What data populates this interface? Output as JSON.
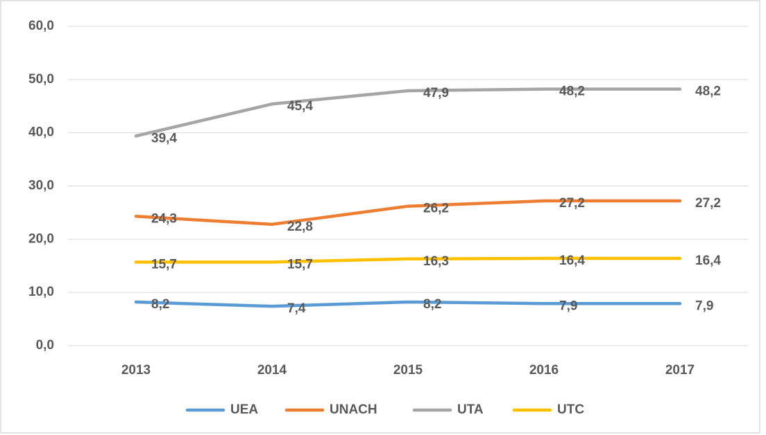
{
  "chart_data": {
    "type": "line",
    "categories": [
      "2013",
      "2014",
      "2015",
      "2016",
      "2017"
    ],
    "series": [
      {
        "name": "UEA",
        "color": "#5b9bd5",
        "values": [
          8.2,
          7.4,
          8.2,
          7.9,
          7.9
        ],
        "value_labels": [
          "8,2",
          "7,4",
          "8,2",
          "7,9",
          "7,9"
        ]
      },
      {
        "name": "UNACH",
        "color": "#ed7d31",
        "values": [
          24.3,
          22.8,
          26.2,
          27.2,
          27.2
        ],
        "value_labels": [
          "24,3",
          "22,8",
          "26,2",
          "27,2",
          "27,2"
        ]
      },
      {
        "name": "UTA",
        "color": "#a5a5a5",
        "values": [
          39.4,
          45.4,
          47.9,
          48.2,
          48.2
        ],
        "value_labels": [
          "39,4",
          "45,4",
          "47,9",
          "48,2",
          "48,2"
        ]
      },
      {
        "name": "UTC",
        "color": "#ffc000",
        "values": [
          15.7,
          15.7,
          16.3,
          16.4,
          16.4
        ],
        "value_labels": [
          "15,7",
          "15,7",
          "16,3",
          "16,4",
          "16,4"
        ]
      }
    ],
    "ylim": [
      0,
      60
    ],
    "yticks": [
      {
        "value": 0,
        "label": "0,0"
      },
      {
        "value": 10,
        "label": "10,0"
      },
      {
        "value": 20,
        "label": "20,0"
      },
      {
        "value": 30,
        "label": "30,0"
      },
      {
        "value": 40,
        "label": "40,0"
      },
      {
        "value": 50,
        "label": "50,0"
      },
      {
        "value": 60,
        "label": "60,0"
      }
    ],
    "grid": true,
    "legend": "bottom"
  }
}
